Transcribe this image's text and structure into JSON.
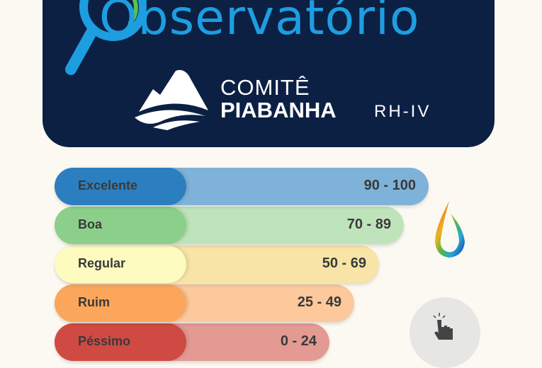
{
  "header": {
    "title": "Observatório",
    "org_line1": "COMITÊ",
    "org_line2": "PIABANHA",
    "region": "RH-IV",
    "icons": [
      "magnifier-logo-icon",
      "mountain-logo-icon"
    ]
  },
  "legend": {
    "items": [
      {
        "label": "Excelente",
        "range": "90 - 100",
        "color": "#2b7fc0",
        "light": "#7fb2d9"
      },
      {
        "label": "Boa",
        "range": "70 - 89",
        "color": "#8ccf8a",
        "light": "#bfe4bb"
      },
      {
        "label": "Regular",
        "range": "50 - 69",
        "color": "#fdfbc0",
        "light": "#f7e4a6"
      },
      {
        "label": "Ruim",
        "range": "25 - 49",
        "color": "#fba65a",
        "light": "#fcc89c"
      },
      {
        "label": "Péssimo",
        "range": "0 - 24",
        "color": "#cf4a43",
        "light": "#e39a93"
      }
    ]
  },
  "icons": {
    "drop": "water-drop-icon",
    "touch": "touch-hand-icon"
  }
}
